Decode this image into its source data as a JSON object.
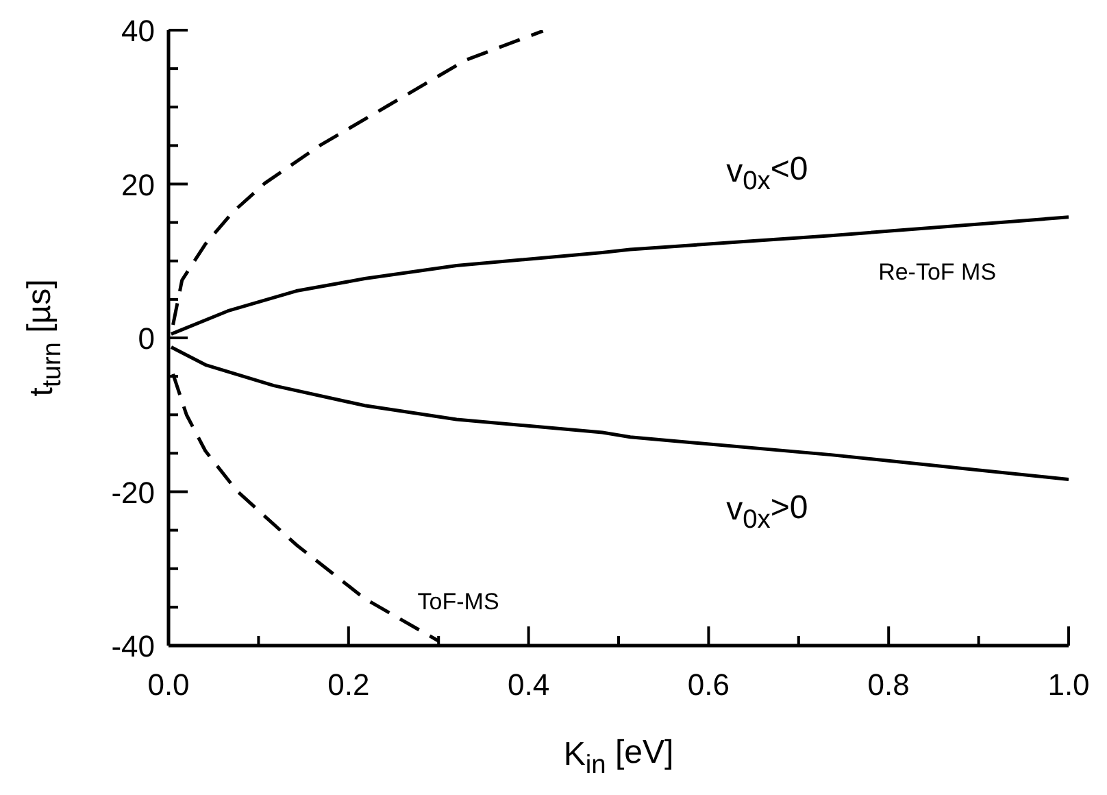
{
  "chart_data": {
    "type": "line",
    "xlabel": "K$_{in}$ [eV]",
    "ylabel": "t$_{turn}$ [µs]",
    "xlim": [
      0,
      1
    ],
    "ylim": [
      -40,
      40
    ],
    "xticks": [
      {
        "value": 0,
        "label": "0.0"
      },
      {
        "value": 0.1,
        "label": null
      },
      {
        "value": 0.2,
        "label": "0.2"
      },
      {
        "value": 0.3,
        "label": null
      },
      {
        "value": 0.4,
        "label": "0.4"
      },
      {
        "value": 0.5,
        "label": null
      },
      {
        "value": 0.6,
        "label": "0.6"
      },
      {
        "value": 0.7,
        "label": null
      },
      {
        "value": 0.8,
        "label": "0.8"
      },
      {
        "value": 0.9,
        "label": null
      },
      {
        "value": 1,
        "label": "1.0"
      }
    ],
    "yticks": [
      -40,
      {
        "value": -35,
        "label": null
      },
      {
        "value": -30,
        "label": null
      },
      {
        "value": -25,
        "label": null
      },
      -20,
      {
        "value": -15,
        "label": null
      },
      {
        "value": -10,
        "label": null
      },
      {
        "value": -5,
        "label": null
      },
      0,
      {
        "value": 5,
        "label": null
      },
      {
        "value": 10,
        "label": null
      },
      {
        "value": 15,
        "label": null
      },
      20,
      {
        "value": 25,
        "label": null
      },
      {
        "value": 30,
        "label": null
      },
      {
        "value": 35,
        "label": null
      },
      40
    ],
    "marker": "none",
    "series": [
      {
        "color": "#000000",
        "line_style": "solid",
        "x": [
          0.003,
          0.066,
          0.142,
          0.218,
          0.32,
          0.482,
          0.513,
          0.736,
          1.0
        ],
        "values": [
          0.5,
          3.5,
          6.1,
          7.7,
          9.4,
          11.1,
          11.5,
          13.3,
          15.7
        ]
      },
      {
        "color": "#000000",
        "line_style": "solid",
        "x": [
          0.003,
          0.041,
          0.117,
          0.218,
          0.32,
          0.482,
          0.513,
          0.736,
          1.0
        ],
        "values": [
          -1.2,
          -3.5,
          -6.2,
          -8.8,
          -10.6,
          -12.3,
          -12.9,
          -15.2,
          -18.4
        ]
      },
      {
        "color": "#000000",
        "line_style": "dashed",
        "x": [
          0.005,
          0.015,
          0.041,
          0.071,
          0.107,
          0.168,
          0.244,
          0.33,
          0.416
        ],
        "values": [
          1.7,
          7.5,
          12.2,
          16.3,
          20.1,
          25,
          30.2,
          36.1,
          39.9
        ]
      },
      {
        "color": "#000000",
        "line_style": "dashed",
        "x": [
          0.005,
          0.02,
          0.041,
          0.076,
          0.142,
          0.218,
          0.3
        ],
        "values": [
          -4.7,
          -10,
          -14.7,
          -19.9,
          -26.9,
          -33.9,
          -39.4
        ]
      }
    ],
    "annotations": [
      "v$_{0x}$<0",
      "Re-ToF MS",
      "v$_{0x}$>0",
      "ToF-MS"
    ]
  }
}
